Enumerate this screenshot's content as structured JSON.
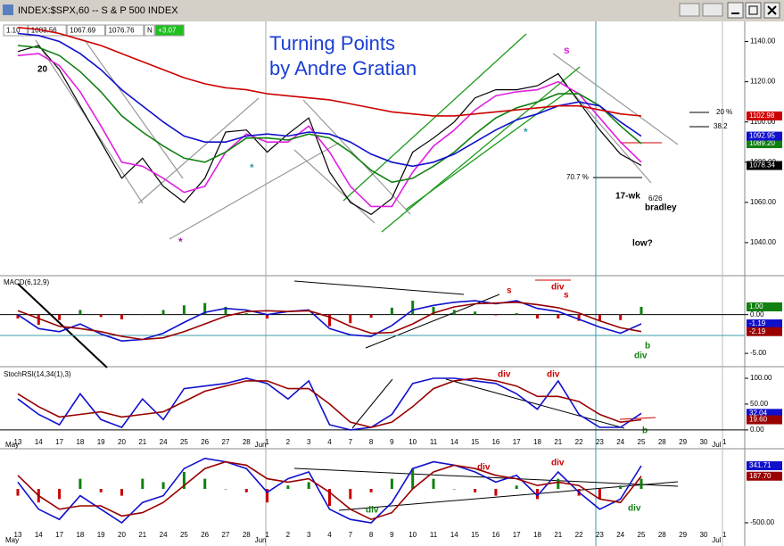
{
  "window": {
    "title": "INDEX:$SPX,60 -- S & P 500 INDEX"
  },
  "toolbar": {
    "values": [
      "1.10",
      "1083.56",
      "1067.69",
      "1076.76",
      "N",
      "+3.07"
    ]
  },
  "chart_data": [
    {
      "type": "line",
      "title": "Turning Points",
      "subtitle": "by Andre Gratian",
      "categories": [
        "13",
        "14",
        "17",
        "18",
        "19",
        "20",
        "21",
        "24",
        "25",
        "26",
        "27",
        "28",
        "1",
        "2",
        "3",
        "4",
        "7",
        "8",
        "9",
        "10",
        "11",
        "14",
        "15",
        "16",
        "17",
        "18",
        "21",
        "22",
        "23",
        "24",
        "25",
        "28",
        "29",
        "30",
        "1"
      ],
      "months": [
        "May",
        null,
        null,
        null,
        null,
        null,
        null,
        null,
        null,
        null,
        null,
        null,
        "Jun",
        null,
        null,
        null,
        null,
        null,
        null,
        null,
        null,
        null,
        null,
        null,
        null,
        null,
        null,
        null,
        null,
        null,
        null,
        null,
        null,
        null,
        "Jul"
      ],
      "ylim": [
        1024,
        1150
      ],
      "yticks": [
        {
          "value": 1040,
          "label": "1040.00"
        },
        {
          "value": 1060,
          "label": "1060.00"
        },
        {
          "value": 1080,
          "label": "1080.00"
        },
        {
          "value": 1100,
          "label": "1100.00"
        },
        {
          "value": 1120,
          "label": "1120.00"
        },
        {
          "value": 1140,
          "label": "1140.00"
        }
      ],
      "series": [
        {
          "name": "Price",
          "color": "#000000",
          "last_label": "1078.34",
          "values": [
            1135,
            1138,
            1126,
            1108,
            1090,
            1072,
            1082,
            1068,
            1060,
            1072,
            1095,
            1096,
            1085,
            1094,
            1102,
            1075,
            1060,
            1054,
            1062,
            1085,
            1092,
            1100,
            1112,
            1116,
            1116,
            1118,
            1124,
            1110,
            1096,
            1084,
            1078.34,
            null,
            null,
            null,
            null
          ]
        },
        {
          "name": "Fast MA",
          "color": "#e020e0",
          "values": [
            1133,
            1134,
            1128,
            1115,
            1098,
            1080,
            1078,
            1072,
            1065,
            1068,
            1085,
            1094,
            1090,
            1090,
            1098,
            1085,
            1068,
            1058,
            1058,
            1075,
            1088,
            1096,
            1106,
            1113,
            1115,
            1116,
            1120,
            1114,
            1102,
            1090,
            1080,
            null,
            null,
            null,
            null
          ]
        },
        {
          "name": "Green MA",
          "color": "#108010",
          "last_label": "1089.20",
          "values": [
            1138,
            1137,
            1133,
            1125,
            1115,
            1103,
            1095,
            1088,
            1082,
            1080,
            1085,
            1092,
            1092,
            1091,
            1094,
            1092,
            1085,
            1076,
            1070,
            1072,
            1078,
            1085,
            1094,
            1102,
            1107,
            1110,
            1114,
            1114,
            1108,
            1098,
            1089.2,
            null,
            null,
            null,
            null
          ]
        },
        {
          "name": "Blue MA",
          "color": "#1010cc",
          "last_label": "1092.95",
          "values": [
            1144,
            1143,
            1140,
            1134,
            1126,
            1116,
            1108,
            1100,
            1093,
            1090,
            1090,
            1093,
            1094,
            1093,
            1095,
            1094,
            1090,
            1084,
            1080,
            1078,
            1080,
            1084,
            1090,
            1096,
            1101,
            1104,
            1108,
            1110,
            1108,
            1100,
            1092.95,
            null,
            null,
            null,
            null
          ]
        },
        {
          "name": "Red MA",
          "color": "#cc0000",
          "last_label": "1102.98",
          "values": [
            1147,
            1146,
            1144,
            1141,
            1138,
            1134,
            1130,
            1126,
            1122,
            1119,
            1117,
            1116,
            1114,
            1113,
            1112,
            1111,
            1109,
            1107,
            1105,
            1104,
            1103,
            1103,
            1104,
            1105,
            1106,
            1107,
            1108,
            1108,
            1106,
            1104,
            1102.98,
            null,
            null,
            null,
            null
          ]
        }
      ],
      "annotations": [
        "20",
        "s",
        "*",
        "*",
        "*",
        "20 %",
        "38.2",
        "70.7 %",
        "17-wk",
        "6/26",
        "bradley",
        "low?"
      ]
    },
    {
      "type": "line",
      "title": "MACD(6,12,9)",
      "ylim": [
        -6.6,
        4.8
      ],
      "yticks": [
        {
          "value": -5,
          "label": "-5.00"
        },
        {
          "value": 0,
          "label": "0.00"
        }
      ],
      "series": [
        {
          "name": "Histogram",
          "kind": "histogram",
          "color": "#108010",
          "negative_color": "#cc0000",
          "last_label": "1.00",
          "values": [
            -0.5,
            -1.3,
            -0.7,
            0.6,
            -0.3,
            -0.6,
            0,
            0.6,
            1.2,
            1.5,
            1.0,
            0.2,
            -0.5,
            0,
            0.1,
            -1.5,
            -1.1,
            -0.4,
            0.9,
            1.8,
            1.0,
            0.6,
            0.4,
            -0.1,
            0.2,
            -0.5,
            -0.5,
            -0.8,
            -0.8,
            -0.7,
            1.0,
            null,
            null,
            null,
            null
          ]
        },
        {
          "name": "MACD",
          "color": "#1010cc",
          "last_label": "-1.19",
          "values": [
            0,
            -1.8,
            -2.2,
            -1.2,
            -2.5,
            -3.4,
            -3.2,
            -2.4,
            -1.0,
            0.3,
            0.8,
            0.6,
            0,
            0.4,
            0.6,
            -1.8,
            -2.6,
            -2.8,
            -1.4,
            0.6,
            1.2,
            1.6,
            1.8,
            1.4,
            1.8,
            0.8,
            0.4,
            -0.6,
            -1.6,
            -2.4,
            -1.19,
            null,
            null,
            null,
            null
          ]
        },
        {
          "name": "Signal",
          "color": "#990000",
          "last_label": "-2.19",
          "values": [
            0.5,
            -0.5,
            -1.5,
            -1.8,
            -2.2,
            -2.8,
            -3.2,
            -3.0,
            -2.2,
            -1.2,
            -0.2,
            0.4,
            0.5,
            0.4,
            0.5,
            -0.3,
            -1.5,
            -2.4,
            -2.3,
            -1.2,
            0.2,
            1.0,
            1.4,
            1.5,
            1.6,
            1.3,
            0.9,
            0.2,
            -0.8,
            -1.7,
            -2.19,
            null,
            null,
            null,
            null
          ]
        }
      ],
      "annotations": [
        "s",
        "div",
        "s",
        "b",
        "div"
      ]
    },
    {
      "type": "line",
      "title": "StochRSI(14,34(1),3)",
      "ylim": [
        -14,
        119
      ],
      "yticks": [
        {
          "value": 0,
          "label": "0.00"
        },
        {
          "value": 50,
          "label": "50.00"
        },
        {
          "value": 100,
          "label": "100.00"
        }
      ],
      "series": [
        {
          "name": "K",
          "color": "#1010cc",
          "last_label": "32.04",
          "values": [
            60,
            30,
            10,
            70,
            20,
            5,
            60,
            20,
            80,
            85,
            90,
            100,
            90,
            60,
            95,
            10,
            0,
            5,
            30,
            90,
            100,
            100,
            95,
            90,
            70,
            40,
            95,
            30,
            5,
            5,
            32.04,
            null,
            null,
            null,
            null
          ]
        },
        {
          "name": "D",
          "color": "#990000",
          "last_label": "19.60",
          "values": [
            70,
            45,
            25,
            30,
            35,
            25,
            30,
            35,
            55,
            75,
            85,
            95,
            95,
            80,
            80,
            50,
            15,
            5,
            15,
            45,
            80,
            95,
            100,
            95,
            85,
            65,
            65,
            55,
            30,
            15,
            19.6,
            null,
            null,
            null,
            null
          ]
        }
      ],
      "annotations": [
        "div",
        "div",
        "b"
      ]
    },
    {
      "type": "line",
      "ylim": [
        -750,
        566
      ],
      "yticks": [
        {
          "value": -500,
          "label": "-500.00"
        }
      ],
      "series": [
        {
          "name": "Histogram",
          "kind": "histogram",
          "color": "#108010",
          "negative_color": "#cc0000",
          "values": [
            -100,
            -200,
            -150,
            150,
            -50,
            -100,
            150,
            100,
            250,
            150,
            0,
            -50,
            -200,
            50,
            100,
            -250,
            -150,
            -50,
            150,
            300,
            150,
            0,
            -50,
            -100,
            50,
            -150,
            150,
            -100,
            -150,
            50,
            150,
            null,
            null,
            null,
            null
          ]
        },
        {
          "name": "Line",
          "color": "#1010cc",
          "last_label": "341.71",
          "values": [
            100,
            -300,
            -450,
            -100,
            -300,
            -500,
            -200,
            -100,
            300,
            450,
            400,
            300,
            -50,
            150,
            250,
            -300,
            -450,
            -500,
            -200,
            300,
            400,
            350,
            250,
            100,
            200,
            -100,
            250,
            -50,
            -300,
            -150,
            341.71,
            null,
            null,
            null,
            null
          ]
        },
        {
          "name": "Signal",
          "color": "#990000",
          "last_label": "187.70",
          "values": [
            200,
            -100,
            -300,
            -250,
            -250,
            -400,
            -350,
            -200,
            50,
            300,
            400,
            350,
            150,
            100,
            150,
            -50,
            -300,
            -450,
            -350,
            0,
            250,
            350,
            300,
            200,
            150,
            50,
            100,
            50,
            -150,
            -200,
            187.7,
            null,
            null,
            null,
            null
          ]
        }
      ],
      "annotations": [
        "div",
        "div",
        "div",
        "div"
      ]
    }
  ]
}
